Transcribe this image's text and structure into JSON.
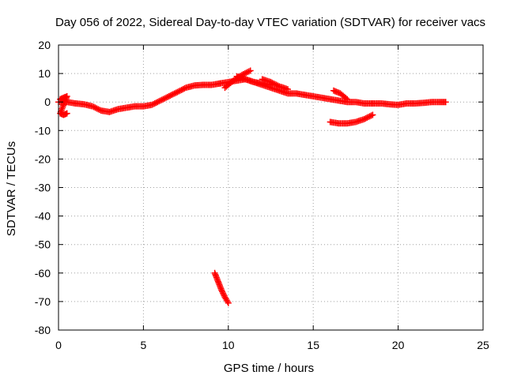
{
  "chart_data": {
    "type": "scatter",
    "title": "Day 056 of 2022, Sidereal Day-to-day VTEC variation (SDTVAR) for receiver vacs",
    "xlabel": "GPS time / hours",
    "ylabel": "SDTVAR / TECUs",
    "xlim": [
      0,
      25
    ],
    "ylim": [
      -80,
      20
    ],
    "xticks": [
      0,
      5,
      10,
      15,
      20,
      25
    ],
    "yticks": [
      -80,
      -70,
      -60,
      -50,
      -40,
      -30,
      -20,
      -10,
      0,
      10,
      20
    ],
    "grid": true,
    "marker": "plus",
    "color": "#ff0000",
    "series": [
      {
        "name": "trace-main-1",
        "x": [
          0.0,
          0.5,
          1.0,
          1.5,
          2.0,
          2.5,
          3.0,
          3.5,
          4.0,
          4.5,
          5.0,
          5.5,
          6.0,
          6.5,
          7.0,
          7.5,
          8.0,
          8.5,
          9.0,
          9.5
        ],
        "y": [
          0,
          0,
          -0.5,
          -0.8,
          -1.5,
          -3,
          -3.5,
          -2.5,
          -2,
          -1.5,
          -1.5,
          -1,
          0.5,
          2,
          3.5,
          5,
          5.8,
          6,
          6,
          6.5
        ]
      },
      {
        "name": "trace-main-2",
        "x": [
          9.5,
          10.0,
          10.5,
          11.0,
          11.5,
          12.0,
          12.5,
          13.0,
          13.5,
          14.0,
          14.5,
          15.0,
          15.5,
          16.0,
          16.5,
          17.0,
          17.5,
          18.0,
          18.5
        ],
        "y": [
          6.5,
          7,
          7.5,
          8,
          7,
          6,
          5,
          4,
          3,
          3,
          2.5,
          2,
          1.5,
          1,
          0.5,
          0,
          0,
          -0.5,
          -0.5
        ]
      },
      {
        "name": "trace-upper-a",
        "x": [
          9.8,
          10.3,
          10.8,
          11.3
        ],
        "y": [
          5,
          7.5,
          9.5,
          11
        ]
      },
      {
        "name": "trace-upper-b",
        "x": [
          10.5,
          11.0,
          11.5,
          12.0,
          12.5
        ],
        "y": [
          9,
          8,
          7,
          6.5,
          6
        ]
      },
      {
        "name": "trace-upper-c",
        "x": [
          12.0,
          12.5,
          13.0,
          13.5
        ],
        "y": [
          8,
          7,
          5.5,
          4.5
        ]
      },
      {
        "name": "trace-upper-d",
        "x": [
          16.2,
          16.6,
          17.0
        ],
        "y": [
          4,
          3,
          1
        ]
      },
      {
        "name": "trace-tail",
        "x": [
          18.5,
          19.0,
          19.5,
          20.0,
          20.5,
          21.0,
          21.5,
          22.0,
          22.5,
          22.8
        ],
        "y": [
          -0.5,
          -0.5,
          -0.8,
          -1,
          -0.5,
          -0.5,
          -0.3,
          0,
          0,
          0
        ]
      },
      {
        "name": "trace-start",
        "x": [
          0.1,
          0.3,
          0.5,
          0.1,
          0.3,
          0.5
        ],
        "y": [
          1,
          1.5,
          2,
          -4,
          -4.5,
          -4
        ]
      },
      {
        "name": "trace-lower-arc",
        "x": [
          16.0,
          16.5,
          17.0,
          17.5,
          18.0,
          18.5
        ],
        "y": [
          -7,
          -7.5,
          -7.5,
          -7,
          -6,
          -4.5
        ]
      },
      {
        "name": "trace-outlier",
        "x": [
          9.2,
          9.4,
          9.6,
          9.8,
          10.0
        ],
        "y": [
          -60,
          -63,
          -66,
          -68.5,
          -70.5
        ]
      }
    ]
  }
}
